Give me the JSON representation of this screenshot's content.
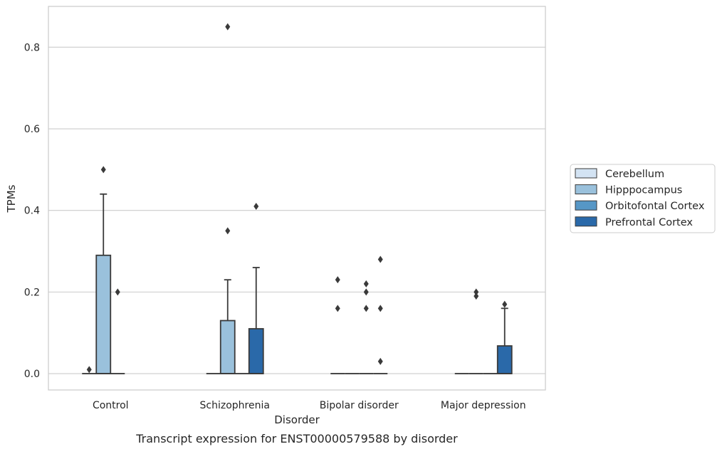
{
  "chart_data": {
    "type": "box",
    "title": "Transcript expression for ENST00000579588 by disorder",
    "xlabel": "Disorder",
    "ylabel": "TPMs",
    "ylim": [
      -0.04,
      0.9
    ],
    "yticks": [
      0.0,
      0.2,
      0.4,
      0.6,
      0.8
    ],
    "ytick_labels": [
      "0.0",
      "0.2",
      "0.4",
      "0.6",
      "0.8"
    ],
    "grid": "horizontal",
    "legend_position": "right",
    "categories": [
      "Control",
      "Schizophrenia",
      "Bipolar disorder",
      "Major depression"
    ],
    "series": [
      {
        "name": "Cerebellum",
        "color": "#d3e3f3",
        "boxes": [
          {
            "q1": 0,
            "median": 0,
            "q3": 0,
            "whisker_low": 0,
            "whisker_high": 0,
            "outliers": [
              0.01
            ]
          },
          {
            "q1": 0,
            "median": 0,
            "q3": 0,
            "whisker_low": 0,
            "whisker_high": 0,
            "outliers": []
          },
          {
            "q1": 0,
            "median": 0,
            "q3": 0,
            "whisker_low": 0,
            "whisker_high": 0,
            "outliers": [
              0.16,
              0.23
            ]
          },
          {
            "q1": 0,
            "median": 0,
            "q3": 0,
            "whisker_low": 0,
            "whisker_high": 0,
            "outliers": []
          }
        ]
      },
      {
        "name": "Hipppocampus",
        "color": "#9ac1dc",
        "boxes": [
          {
            "q1": 0,
            "median": 0,
            "q3": 0.29,
            "whisker_low": 0,
            "whisker_high": 0.44,
            "outliers": [
              0.5
            ]
          },
          {
            "q1": 0,
            "median": 0,
            "q3": 0.13,
            "whisker_low": 0,
            "whisker_high": 0.23,
            "outliers": [
              0.35,
              0.85
            ]
          },
          {
            "q1": 0,
            "median": 0,
            "q3": 0,
            "whisker_low": 0,
            "whisker_high": 0,
            "outliers": []
          },
          {
            "q1": 0,
            "median": 0,
            "q3": 0,
            "whisker_low": 0,
            "whisker_high": 0,
            "outliers": [
              0.19,
              0.2
            ]
          }
        ]
      },
      {
        "name": "Orbitofontal Cortex",
        "color": "#5697c6",
        "boxes": [
          {
            "q1": 0,
            "median": 0,
            "q3": 0,
            "whisker_low": 0,
            "whisker_high": 0,
            "outliers": [
              0.2
            ]
          },
          {
            "q1": 0,
            "median": 0,
            "q3": 0,
            "whisker_low": 0,
            "whisker_high": 0,
            "outliers": []
          },
          {
            "q1": 0,
            "median": 0,
            "q3": 0,
            "whisker_low": 0,
            "whisker_high": 0,
            "outliers": [
              0.16,
              0.2,
              0.22
            ]
          },
          {
            "q1": 0,
            "median": 0,
            "q3": 0,
            "whisker_low": 0,
            "whisker_high": 0,
            "outliers": []
          }
        ]
      },
      {
        "name": "Prefrontal Cortex",
        "color": "#2a69a9",
        "boxes": [
          null,
          {
            "q1": 0,
            "median": 0,
            "q3": 0.11,
            "whisker_low": 0,
            "whisker_high": 0.26,
            "outliers": [
              0.41
            ]
          },
          {
            "q1": 0,
            "median": 0,
            "q3": 0,
            "whisker_low": 0,
            "whisker_high": 0,
            "outliers": [
              0.03,
              0.16,
              0.28
            ]
          },
          {
            "q1": 0,
            "median": 0,
            "q3": 0.068,
            "whisker_low": 0,
            "whisker_high": 0.16,
            "outliers": [
              0.17
            ]
          }
        ]
      }
    ]
  }
}
